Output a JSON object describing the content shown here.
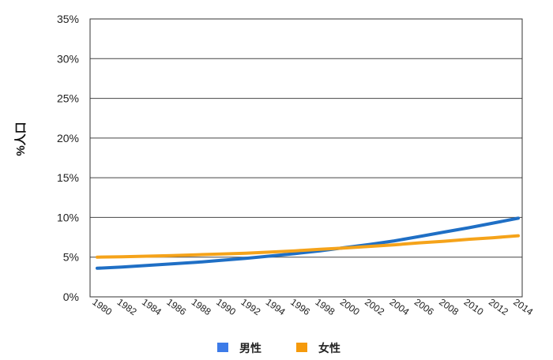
{
  "chart_data": {
    "type": "line",
    "title": "",
    "xlabel": "",
    "ylabel": "%人口",
    "x": [
      1980,
      1982,
      1984,
      1986,
      1988,
      1990,
      1992,
      1994,
      1996,
      1998,
      2000,
      2002,
      2004,
      2006,
      2008,
      2010,
      2012,
      2014
    ],
    "x_tick_labels": [
      "1980",
      "1982",
      "1984",
      "1986",
      "1988",
      "1990",
      "1992",
      "1994",
      "1996",
      "1998",
      "2000",
      "2002",
      "2004",
      "2006",
      "2008",
      "2010",
      "2012",
      "2014"
    ],
    "ylim": [
      0,
      35
    ],
    "y_ticks": [
      0,
      5,
      10,
      15,
      20,
      25,
      30,
      35
    ],
    "y_tick_labels": [
      "0%",
      "5%",
      "10%",
      "15%",
      "20%",
      "25%",
      "30%",
      "35%"
    ],
    "grid": true,
    "legend_position": "bottom",
    "series": [
      {
        "name": "男性",
        "color": "#1f6fc5",
        "legend_color": "#3d7be8",
        "values": [
          3.6,
          3.75,
          3.95,
          4.15,
          4.35,
          4.6,
          4.85,
          5.15,
          5.45,
          5.8,
          6.2,
          6.6,
          7.05,
          7.6,
          8.15,
          8.7,
          9.3,
          9.9
        ]
      },
      {
        "name": "女性",
        "color": "#f5a31a",
        "legend_color": "#f59a0c",
        "values": [
          5.0,
          5.05,
          5.12,
          5.2,
          5.3,
          5.4,
          5.5,
          5.65,
          5.8,
          6.0,
          6.15,
          6.35,
          6.55,
          6.8,
          7.0,
          7.25,
          7.45,
          7.7
        ]
      }
    ]
  }
}
